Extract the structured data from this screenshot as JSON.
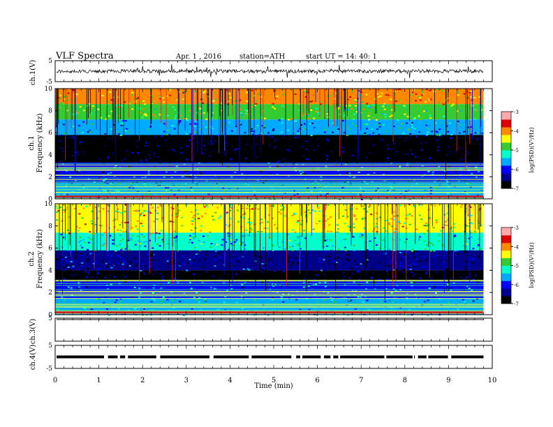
{
  "header": {
    "title": "VLF  Spectra",
    "date": "Apr. 1  , 2016",
    "station": "station=ATH",
    "start": "start  UT  =    14: 40: 1"
  },
  "chart_data": [
    {
      "type": "line",
      "ylabel": "ch.1(V)",
      "ylim": [
        -5,
        5
      ],
      "yticks": [
        "5",
        "-5"
      ],
      "xlim": [
        0,
        10
      ],
      "baseline": 0,
      "color": "#000000"
    },
    {
      "type": "heatmap",
      "ylabel": "Frequency  (kHz)",
      "channel": "ch.1",
      "ylim": [
        0,
        10
      ],
      "yticks": [
        "0",
        "2",
        "4",
        "6",
        "8",
        "10"
      ],
      "xlim": [
        0,
        10
      ],
      "colorbar": {
        "label": "log(PSD)(V²/Hz)",
        "ticks": [
          "-3",
          "-4",
          "-5",
          "-6",
          "-7"
        ],
        "range": [
          -7,
          -3
        ]
      },
      "bands_khz": [
        {
          "from": 0.0,
          "to": 1.5,
          "level": -5.5
        },
        {
          "from": 1.5,
          "to": 3.3,
          "level": -6.1
        },
        {
          "from": 3.3,
          "to": 5.8,
          "level": -6.8
        },
        {
          "from": 5.8,
          "to": 7.2,
          "level": -5.5
        },
        {
          "from": 7.2,
          "to": 8.6,
          "level": -4.7
        },
        {
          "from": 8.6,
          "to": 10.0,
          "level": -4.2
        }
      ]
    },
    {
      "type": "heatmap",
      "ylabel": "Frequency  (kHz)",
      "channel": "ch.2",
      "ylim": [
        0,
        10
      ],
      "yticks": [
        "0",
        "2",
        "4",
        "6",
        "8",
        "10"
      ],
      "xlim": [
        0,
        10
      ],
      "colorbar": {
        "label": "log(PSD)(V²/Hz)",
        "ticks": [
          "-3",
          "-4",
          "-5",
          "-6",
          "-7"
        ],
        "range": [
          -7,
          -3
        ]
      },
      "bands_khz": [
        {
          "from": 0.0,
          "to": 1.5,
          "level": -5.4
        },
        {
          "from": 1.5,
          "to": 3.0,
          "level": -5.9
        },
        {
          "from": 3.0,
          "to": 4.0,
          "level": -6.7
        },
        {
          "from": 4.0,
          "to": 5.8,
          "level": -6.4
        },
        {
          "from": 5.8,
          "to": 7.4,
          "level": -5.3
        },
        {
          "from": 7.4,
          "to": 10.0,
          "level": -4.5
        }
      ]
    },
    {
      "type": "line",
      "ylabel": "ch.3(V)",
      "ylim": [
        -5,
        5
      ],
      "yticks": [
        "5"
      ],
      "xlim": [
        0,
        10
      ],
      "baseline": 5,
      "color": "#000000"
    },
    {
      "type": "line",
      "ylabel": "ch.4(V)",
      "ylim": [
        -5,
        5
      ],
      "yticks": [
        "5",
        "-5"
      ],
      "xlim": [
        0,
        10
      ],
      "baseline": 0,
      "color": "#000000"
    }
  ],
  "xaxis": {
    "label": "Time  (min)",
    "ticks": [
      "0",
      "1",
      "2",
      "3",
      "4",
      "5",
      "6",
      "7",
      "8",
      "9",
      "10"
    ],
    "data_end_min": 9.8
  },
  "colors": {
    "scale": [
      "#000000",
      "#00008b",
      "#0000ff",
      "#00aaff",
      "#00ffcc",
      "#33cc33",
      "#ffff00",
      "#ff8800",
      "#dd0000",
      "#ffaaaa"
    ]
  }
}
